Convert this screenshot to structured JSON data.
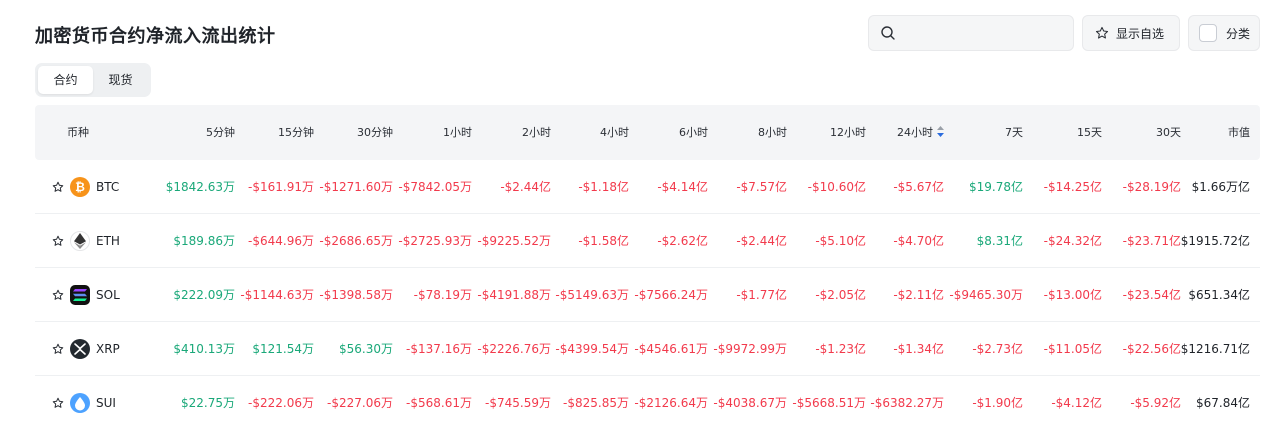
{
  "title": "加密货币合约净流入流出统计",
  "search": {
    "placeholder": ""
  },
  "toolbar": {
    "show_favorites": "显示自选",
    "category": "分类"
  },
  "tabs": [
    {
      "label": "合约",
      "active": true
    },
    {
      "label": "现货",
      "active": false
    }
  ],
  "columns": [
    "币种",
    "5分钟",
    "15分钟",
    "30分钟",
    "1小时",
    "2小时",
    "4小时",
    "6小时",
    "8小时",
    "12小时",
    "24小时",
    "7天",
    "15天",
    "30天",
    "市值"
  ],
  "sorted_column": "24小时",
  "colors": {
    "positive": "#1aa879",
    "negative": "#f23a4c",
    "header_bg": "#f4f5f7"
  },
  "rows": [
    {
      "symbol": "BTC",
      "logo_icon": "bitcoin-icon",
      "values": [
        "$1842.63万",
        "-$161.91万",
        "-$1271.60万",
        "-$7842.05万",
        "-$2.44亿",
        "-$1.18亿",
        "-$4.14亿",
        "-$7.57亿",
        "-$10.60亿",
        "-$5.67亿",
        "$19.78亿",
        "-$14.25亿",
        "-$28.19亿"
      ],
      "market_cap": "$1.66万亿"
    },
    {
      "symbol": "ETH",
      "logo_icon": "ethereum-icon",
      "values": [
        "$189.86万",
        "-$644.96万",
        "-$2686.65万",
        "-$2725.93万",
        "-$9225.52万",
        "-$1.58亿",
        "-$2.62亿",
        "-$2.44亿",
        "-$5.10亿",
        "-$4.70亿",
        "$8.31亿",
        "-$24.32亿",
        "-$23.71亿"
      ],
      "market_cap": "$1915.72亿"
    },
    {
      "symbol": "SOL",
      "logo_icon": "solana-icon",
      "values": [
        "$222.09万",
        "-$1144.63万",
        "-$1398.58万",
        "-$78.19万",
        "-$4191.88万",
        "-$5149.63万",
        "-$7566.24万",
        "-$1.77亿",
        "-$2.05亿",
        "-$2.11亿",
        "-$9465.30万",
        "-$13.00亿",
        "-$23.54亿"
      ],
      "market_cap": "$651.34亿"
    },
    {
      "symbol": "XRP",
      "logo_icon": "xrp-icon",
      "values": [
        "$410.13万",
        "$121.54万",
        "$56.30万",
        "-$137.16万",
        "-$2226.76万",
        "-$4399.54万",
        "-$4546.61万",
        "-$9972.99万",
        "-$1.23亿",
        "-$1.34亿",
        "-$2.73亿",
        "-$11.05亿",
        "-$22.56亿"
      ],
      "market_cap": "$1216.71亿"
    },
    {
      "symbol": "SUI",
      "logo_icon": "sui-icon",
      "values": [
        "$22.75万",
        "-$222.06万",
        "-$227.06万",
        "-$568.61万",
        "-$745.59万",
        "-$825.85万",
        "-$2126.64万",
        "-$4038.67万",
        "-$5668.51万",
        "-$6382.27万",
        "-$1.90亿",
        "-$4.12亿",
        "-$5.92亿"
      ],
      "market_cap": "$67.84亿"
    }
  ]
}
